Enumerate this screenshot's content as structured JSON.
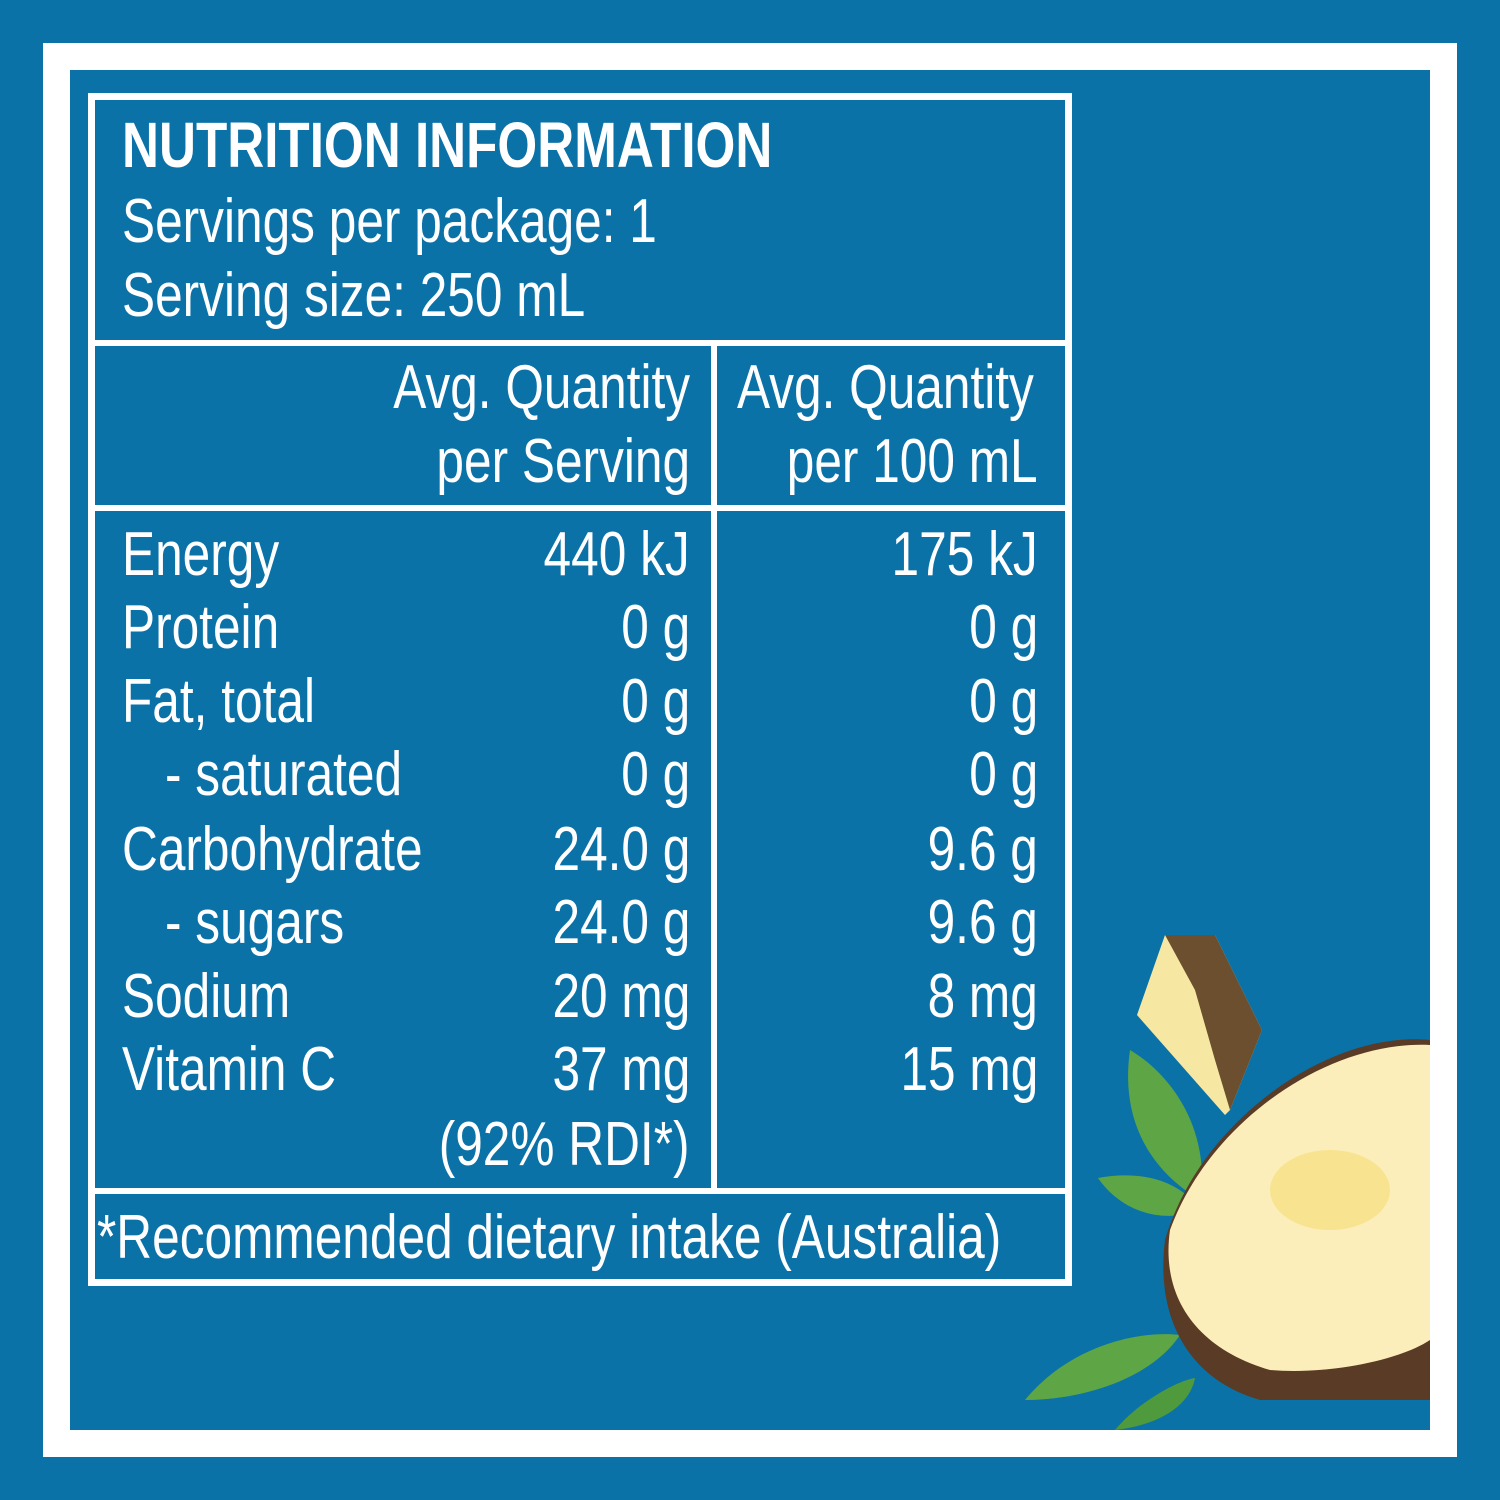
{
  "title": "NUTRITION INFORMATION",
  "servings_per_package": "Servings per package: 1",
  "serving_size": "Serving size: 250 mL",
  "headers": {
    "per_serving": [
      "Avg. Quantity",
      "per Serving"
    ],
    "per_100ml": [
      "Avg. Quantity",
      "per 100 mL"
    ]
  },
  "rows": [
    {
      "label": "Energy",
      "per_serving": "440 kJ",
      "per_100ml": "175 kJ"
    },
    {
      "label": "Protein",
      "per_serving": "0 g",
      "per_100ml": "0 g"
    },
    {
      "label": "Fat, total",
      "per_serving": "0 g",
      "per_100ml": "0 g"
    },
    {
      "label": "- saturated",
      "per_serving": "0 g",
      "per_100ml": "0 g"
    },
    {
      "label": "Carbohydrate",
      "per_serving": "24.0 g",
      "per_100ml": "9.6 g"
    },
    {
      "label": "- sugars",
      "per_serving": "24.0 g",
      "per_100ml": "9.6 g"
    },
    {
      "label": "Sodium",
      "per_serving": "20 mg",
      "per_100ml": "8 mg"
    },
    {
      "label": "Vitamin C",
      "per_serving": "37 mg",
      "per_100ml": "15 mg"
    }
  ],
  "vitamin_c_rdi": "(92% RDI*)",
  "footnote": "*Recommended dietary intake (Australia)",
  "colors": {
    "background": "#0b72a8",
    "text": "#ffffff"
  },
  "decoration": "pineapple-illustration"
}
